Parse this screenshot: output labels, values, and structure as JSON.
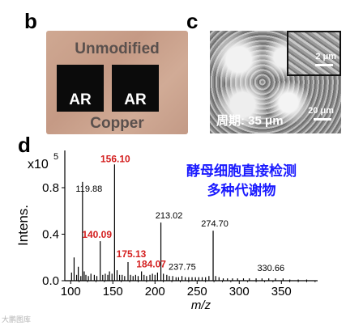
{
  "panels": {
    "b": {
      "letter": "b",
      "top_text": "Unmodified",
      "bottom_text": "Copper",
      "square_labels": [
        "AR",
        "AR"
      ]
    },
    "c": {
      "letter": "c",
      "inset_scale": "2 μm",
      "scale": "20 μm",
      "period": "周期: 35 μm"
    },
    "d": {
      "letter": "d"
    }
  },
  "annotation_cn": [
    "酵母细胞直接检测",
    "多种代谢物"
  ],
  "watermark": "大鹏图库",
  "colors": {
    "highlight": "#d42020",
    "normal": "#000000",
    "chinese": "#1a1aff"
  },
  "chart_data": {
    "type": "bar",
    "subtype": "mass-spectrum",
    "ylabel": "Intens.",
    "xlabel": "m/z",
    "scale_label": "x10",
    "scale_exp": "5",
    "xlim": [
      93,
      393
    ],
    "ylim": [
      0,
      1.12
    ],
    "xticks": [
      100,
      150,
      200,
      250,
      300,
      350
    ],
    "yticks": [
      0.0,
      0.4,
      0.8
    ],
    "ytick_labels": [
      "0.0",
      "0.4",
      "0.8"
    ],
    "peaks": [
      {
        "x": 101,
        "y": 0.07
      },
      {
        "x": 104,
        "y": 0.2
      },
      {
        "x": 107,
        "y": 0.05
      },
      {
        "x": 109,
        "y": 0.12
      },
      {
        "x": 112,
        "y": 0.04
      },
      {
        "x": 114,
        "y": 0.85
      },
      {
        "x": 116,
        "y": 0.08
      },
      {
        "x": 118,
        "y": 0.05
      },
      {
        "x": 121,
        "y": 0.04
      },
      {
        "x": 124,
        "y": 0.06
      },
      {
        "x": 128,
        "y": 0.05
      },
      {
        "x": 131,
        "y": 0.04
      },
      {
        "x": 135,
        "y": 0.34
      },
      {
        "x": 138,
        "y": 0.05
      },
      {
        "x": 141,
        "y": 0.06
      },
      {
        "x": 144,
        "y": 0.05
      },
      {
        "x": 146,
        "y": 0.08
      },
      {
        "x": 149,
        "y": 0.06
      },
      {
        "x": 152,
        "y": 1.0
      },
      {
        "x": 155,
        "y": 0.09
      },
      {
        "x": 158,
        "y": 0.05
      },
      {
        "x": 161,
        "y": 0.05
      },
      {
        "x": 164,
        "y": 0.04
      },
      {
        "x": 168,
        "y": 0.16
      },
      {
        "x": 171,
        "y": 0.05
      },
      {
        "x": 174,
        "y": 0.04
      },
      {
        "x": 177,
        "y": 0.05
      },
      {
        "x": 180,
        "y": 0.04
      },
      {
        "x": 184,
        "y": 0.08
      },
      {
        "x": 187,
        "y": 0.05
      },
      {
        "x": 190,
        "y": 0.04
      },
      {
        "x": 194,
        "y": 0.05
      },
      {
        "x": 197,
        "y": 0.06
      },
      {
        "x": 200,
        "y": 0.05
      },
      {
        "x": 203,
        "y": 0.07
      },
      {
        "x": 207,
        "y": 0.5
      },
      {
        "x": 210,
        "y": 0.06
      },
      {
        "x": 214,
        "y": 0.05
      },
      {
        "x": 217,
        "y": 0.04
      },
      {
        "x": 221,
        "y": 0.04
      },
      {
        "x": 225,
        "y": 0.03
      },
      {
        "x": 228,
        "y": 0.03
      },
      {
        "x": 232,
        "y": 0.04
      },
      {
        "x": 236,
        "y": 0.03
      },
      {
        "x": 240,
        "y": 0.03
      },
      {
        "x": 244,
        "y": 0.03
      },
      {
        "x": 248,
        "y": 0.03
      },
      {
        "x": 252,
        "y": 0.03
      },
      {
        "x": 256,
        "y": 0.03
      },
      {
        "x": 260,
        "y": 0.03
      },
      {
        "x": 264,
        "y": 0.04
      },
      {
        "x": 269,
        "y": 0.43
      },
      {
        "x": 272,
        "y": 0.04
      },
      {
        "x": 276,
        "y": 0.03
      },
      {
        "x": 281,
        "y": 0.02
      },
      {
        "x": 286,
        "y": 0.02
      },
      {
        "x": 292,
        "y": 0.02
      },
      {
        "x": 298,
        "y": 0.02
      },
      {
        "x": 305,
        "y": 0.02
      },
      {
        "x": 312,
        "y": 0.02
      },
      {
        "x": 320,
        "y": 0.02
      },
      {
        "x": 327,
        "y": 0.02
      },
      {
        "x": 335,
        "y": 0.02
      },
      {
        "x": 343,
        "y": 0.02
      },
      {
        "x": 352,
        "y": 0.02
      },
      {
        "x": 360,
        "y": 0.01
      },
      {
        "x": 370,
        "y": 0.01
      },
      {
        "x": 380,
        "y": 0.01
      }
    ],
    "annotations": [
      {
        "text": "119.88",
        "x": 114,
        "y": 0.85,
        "highlight": false
      },
      {
        "text": "156.10",
        "x": 152,
        "y": 1.0,
        "highlight": true
      },
      {
        "text": "140.09",
        "x": 135,
        "y": 0.34,
        "highlight": true
      },
      {
        "text": "175.13",
        "x": 168,
        "y": 0.16,
        "highlight": true
      },
      {
        "text": "184.07",
        "x": 184,
        "y": 0.08,
        "highlight": true
      },
      {
        "text": "213.02",
        "x": 207,
        "y": 0.5,
        "highlight": false
      },
      {
        "text": "237.75",
        "x": 240,
        "y": 0.03,
        "highlight": false
      },
      {
        "text": "274.70",
        "x": 269,
        "y": 0.43,
        "highlight": false
      },
      {
        "text": "330.66",
        "x": 325,
        "y": 0.02,
        "highlight": false
      }
    ]
  }
}
